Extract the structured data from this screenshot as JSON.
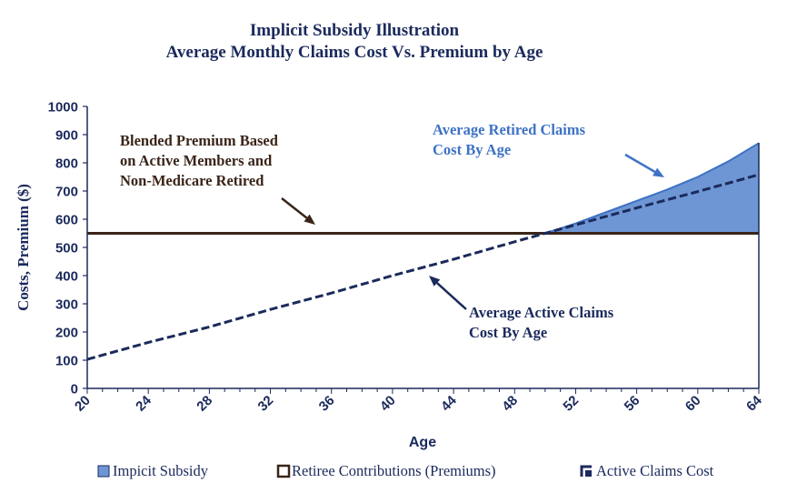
{
  "chart_data": {
    "type": "area",
    "title": "Implicit Subsidy Illustration",
    "subtitle": "Average Monthly Claims Cost Vs. Premium by Age",
    "xlabel": "Age",
    "ylabel": "Costs, Premium ($)",
    "xlim": [
      20,
      64
    ],
    "ylim": [
      0,
      1000
    ],
    "x_ticks": [
      "20",
      "24",
      "28",
      "32",
      "36",
      "40",
      "44",
      "48",
      "52",
      "56",
      "60",
      "64"
    ],
    "y_ticks": [
      "0",
      "100",
      "200",
      "300",
      "400",
      "500",
      "600",
      "700",
      "800",
      "900",
      "1000"
    ],
    "series": [
      {
        "name": "Retiree Contributions (Premiums)",
        "type": "line",
        "style": "solid",
        "x": [
          20,
          64
        ],
        "values": [
          550,
          550
        ]
      },
      {
        "name": "Active Claims Cost",
        "type": "line",
        "style": "dashed",
        "x": [
          20,
          24,
          28,
          32,
          36,
          40,
          44,
          48,
          50,
          52,
          56,
          60,
          64
        ],
        "values": [
          103,
          163,
          218,
          280,
          338,
          400,
          458,
          520,
          550,
          580,
          640,
          698,
          758
        ]
      },
      {
        "name": "Average Retired Claims Cost",
        "type": "line",
        "style": "solid",
        "x": [
          50,
          52,
          54,
          56,
          58,
          60,
          62,
          64
        ],
        "values": [
          550,
          585,
          625,
          665,
          705,
          750,
          805,
          870
        ]
      },
      {
        "name": "Impicit Subsidy",
        "type": "area",
        "x": [
          50,
          52,
          54,
          56,
          58,
          60,
          62,
          64
        ],
        "upper": [
          550,
          585,
          625,
          665,
          705,
          750,
          805,
          870
        ],
        "lower": [
          550,
          550,
          550,
          550,
          550,
          550,
          550,
          550
        ]
      }
    ],
    "annotations": [
      {
        "text": "Blended Premium Based on Active Members and Non-Medicare Retired",
        "lines": [
          "Blended Premium Based",
          "on Active Members and",
          "Non-Medicare Retired"
        ]
      },
      {
        "text": "Average Retired Claims Cost By Age",
        "lines": [
          "Average Retired Claims",
          "Cost By Age"
        ]
      },
      {
        "text": "Average Active Claims Cost By Age",
        "lines": [
          "Average Active Claims",
          "Cost By Age"
        ]
      }
    ],
    "legend": {
      "placement": "bottom",
      "entries": [
        "Impicit Subsidy",
        "Retiree Contributions (Premiums)",
        "Active Claims Cost"
      ]
    },
    "colors": {
      "premium": "#3a2418",
      "active": "#1b2a5c",
      "subsidy_fill": "#6e96d4",
      "retired_line": "#3d72c4",
      "title": "#1b2a5c",
      "axis_text": "#1b2a5c",
      "annot_premium": "#3a2418",
      "annot_retired": "#3d72c4",
      "annot_active": "#1b2a5c"
    }
  }
}
